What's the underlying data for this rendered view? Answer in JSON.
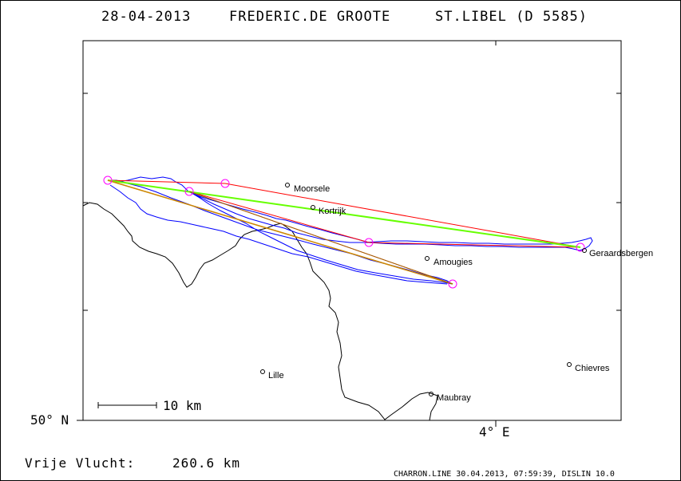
{
  "header": {
    "date": "28-04-2013",
    "pilot": "FREDERIC.DE GROOTE",
    "glider": "ST.LIBEL (D 5585)"
  },
  "map": {
    "latitude_label": "50° N",
    "longitude_label": "4° E",
    "scale_label": "10 km",
    "places": [
      {
        "name": "Moorsele"
      },
      {
        "name": "Kortrijk"
      },
      {
        "name": "Geraardsbergen"
      },
      {
        "name": "Amougies"
      },
      {
        "name": "Lille"
      },
      {
        "name": "Chievres"
      },
      {
        "name": "Maubray"
      }
    ],
    "colors": {
      "track": "#0000ff",
      "task": "#ff0000",
      "leg_green": "#66ff00",
      "leg_orange": "#ff9900",
      "turnpoint": "#ff00ff",
      "border": "#000000"
    }
  },
  "footer": {
    "distance_label": "Vrije Vlucht:",
    "distance_value": "260.6 km",
    "credits": "CHARRON.LINE 30.04.2013, 07:59:39, DISLIN 10.0"
  }
}
